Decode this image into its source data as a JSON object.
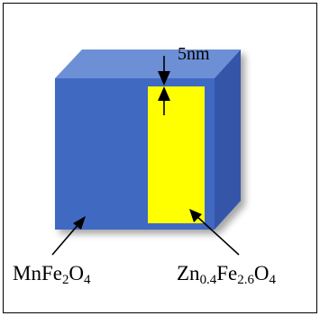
{
  "labels": {
    "thickness": "5nm",
    "core": {
      "base": "MnFe",
      "sub1": "2",
      "mid": "O",
      "sub2": "4"
    },
    "shell": {
      "p1": "Zn",
      "s1": "0.4",
      "p2": "Fe",
      "s2": "2.6",
      "p3": "O",
      "s3": "4"
    }
  },
  "colors": {
    "cube_front": "#4169c2",
    "cube_top": "#6c8fd6",
    "cube_side": "#3454a8",
    "shell_layer": "#ffff00",
    "border": "#000000"
  }
}
